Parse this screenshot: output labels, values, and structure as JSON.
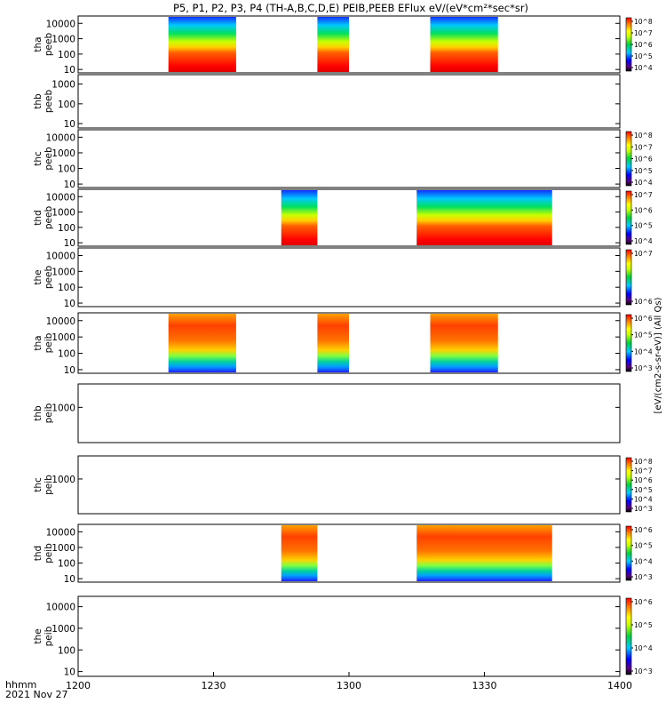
{
  "title": "P5, P1, P2, P3, P4 (TH-A,B,C,D,E) PEIB,PEEB EFlux eV/(eV*cm²*sec*sr)",
  "time_axis": {
    "ticks": [
      "1200",
      "1230",
      "1300",
      "1330",
      "1400"
    ],
    "label": "hhmm",
    "date": "2021 Nov 27"
  },
  "colorbar_labels": {
    "electron": "[eV/(cm2-s-sr-eV)] (All Qs)",
    "ion": "[eV/(cm2-s-sr-eV)] (All Qs)"
  },
  "chart_data": {
    "type": "heatmap",
    "x_unit": "UT (hhmm)",
    "x_range": [
      "1200",
      "1400"
    ],
    "y_unit": "energy (eV), log scale",
    "panels": [
      {
        "probe": "tha",
        "product": "peeb",
        "y_ticks": [
          "10",
          "100",
          "1000",
          "10000"
        ],
        "ylim": [
          6,
          30000
        ],
        "cbar_ticks": [
          "10^4",
          "10^5",
          "10^6",
          "10^7",
          "10^8"
        ],
        "intervals": [
          [
            "1220",
            "1235"
          ],
          [
            "1253",
            "1300"
          ],
          [
            "1318",
            "1333"
          ]
        ]
      },
      {
        "probe": "thb",
        "product": "peeb",
        "y_ticks": [
          "10",
          "100",
          "1000"
        ],
        "ylim": [
          6,
          3000
        ],
        "cbar_ticks": [],
        "intervals": []
      },
      {
        "probe": "thc",
        "product": "peeb",
        "y_ticks": [
          "10",
          "100",
          "1000",
          "10000"
        ],
        "ylim": [
          6,
          30000
        ],
        "cbar_ticks": [
          "10^4",
          "10^5",
          "10^6",
          "10^7",
          "10^8"
        ],
        "intervals": []
      },
      {
        "probe": "thd",
        "product": "peeb",
        "y_ticks": [
          "10",
          "100",
          "1000",
          "10000"
        ],
        "ylim": [
          6,
          30000
        ],
        "cbar_ticks": [
          "10^4",
          "10^5",
          "10^6",
          "10^7"
        ],
        "intervals": [
          [
            "1245",
            "1253"
          ],
          [
            "1315",
            "1345"
          ]
        ]
      },
      {
        "probe": "the",
        "product": "peeb",
        "y_ticks": [
          "10",
          "100",
          "1000",
          "10000"
        ],
        "ylim": [
          6,
          30000
        ],
        "cbar_ticks": [
          "10^6",
          "10^7"
        ],
        "intervals": []
      },
      {
        "probe": "tha",
        "product": "peib",
        "y_ticks": [
          "10",
          "100",
          "1000",
          "10000"
        ],
        "ylim": [
          6,
          30000
        ],
        "cbar_ticks": [
          "10^3",
          "10^4",
          "10^5",
          "10^6"
        ],
        "intervals": [
          [
            "1220",
            "1235"
          ],
          [
            "1253",
            "1300"
          ],
          [
            "1318",
            "1333"
          ]
        ]
      },
      {
        "probe": "thb",
        "product": "peib",
        "y_ticks": [
          "1000"
        ],
        "ylim": [
          6,
          30000
        ],
        "cbar_ticks": [],
        "intervals": []
      },
      {
        "probe": "thc",
        "product": "peib",
        "y_ticks": [
          "1000"
        ],
        "ylim": [
          6,
          30000
        ],
        "cbar_ticks": [
          "10^3",
          "10^4",
          "10^5",
          "10^6",
          "10^7",
          "10^8"
        ],
        "intervals": []
      },
      {
        "probe": "thd",
        "product": "peib",
        "y_ticks": [
          "10",
          "100",
          "1000",
          "10000"
        ],
        "ylim": [
          6,
          30000
        ],
        "cbar_ticks": [
          "10^3",
          "10^4",
          "10^5",
          "10^6"
        ],
        "intervals": [
          [
            "1245",
            "1253"
          ],
          [
            "1315",
            "1345"
          ]
        ]
      },
      {
        "probe": "the",
        "product": "peib",
        "y_ticks": [
          "10",
          "100",
          "1000",
          "10000"
        ],
        "ylim": [
          6,
          30000
        ],
        "cbar_ticks": [
          "10^3",
          "10^4",
          "10^5",
          "10^6"
        ],
        "intervals": []
      }
    ]
  }
}
